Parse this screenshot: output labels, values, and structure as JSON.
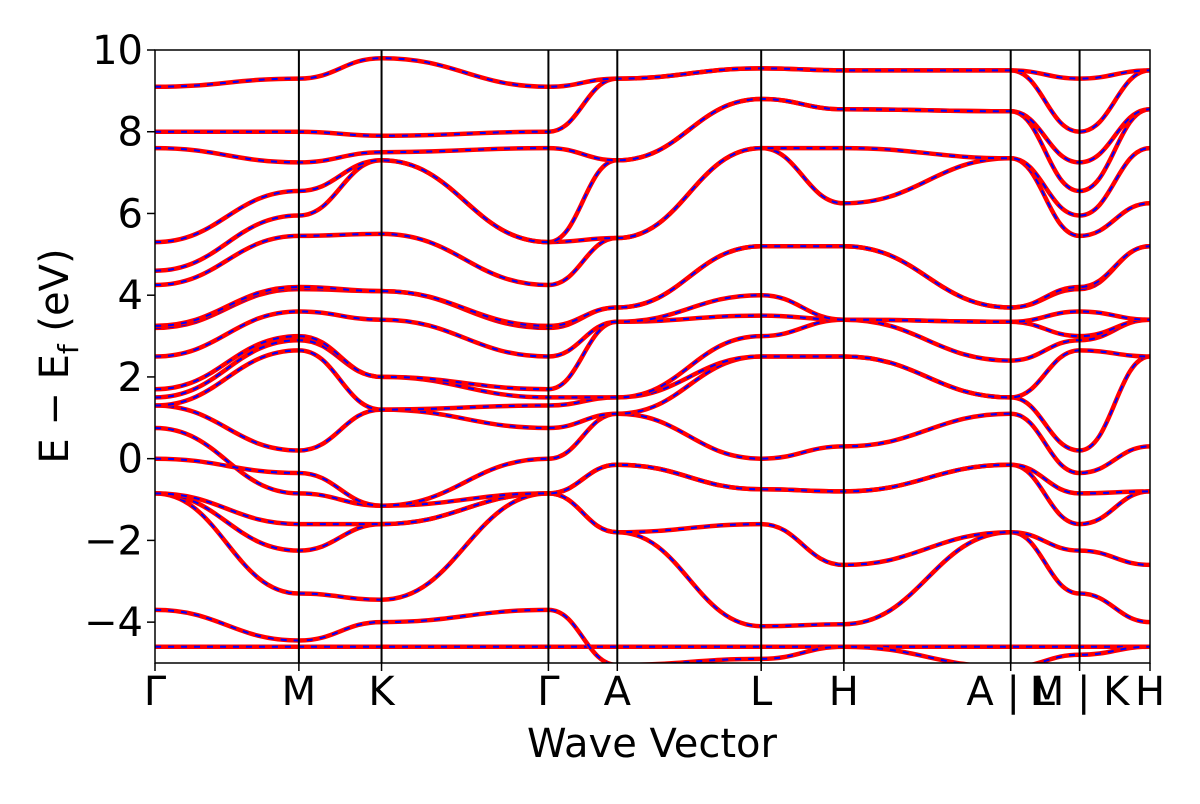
{
  "chart_data": {
    "type": "line",
    "xlabel": "Wave Vector",
    "ylabel_main": "E − E",
    "ylabel_sub": "f",
    "ylabel_unit": " (eV)",
    "ylim": [
      -5,
      10
    ],
    "yticks": [
      -4,
      -2,
      0,
      2,
      4,
      6,
      8,
      10
    ],
    "yticks_labels": [
      "−4",
      "−2",
      "0",
      "2",
      "4",
      "6",
      "8",
      "10"
    ],
    "xlim": [
      0,
      6.5
    ],
    "kpath": {
      "segments": [
        {
          "from": "Γ",
          "to": "M",
          "start": 0.0,
          "end": 0.94
        },
        {
          "from": "M",
          "to": "K",
          "start": 0.94,
          "end": 1.48
        },
        {
          "from": "K",
          "to": "Γ",
          "start": 1.48,
          "end": 2.57
        },
        {
          "from": "Γ",
          "to": "A",
          "start": 2.57,
          "end": 3.02
        },
        {
          "from": "A",
          "to": "L",
          "start": 3.02,
          "end": 3.96
        },
        {
          "from": "L",
          "to": "H",
          "start": 3.96,
          "end": 4.5
        },
        {
          "from": "H",
          "to": "A",
          "start": 4.5,
          "end": 5.59
        },
        {
          "from": "L",
          "to": "M",
          "start": 5.59,
          "end": 6.04
        },
        {
          "from": "K",
          "to": "H",
          "start": 6.04,
          "end": 6.5
        }
      ],
      "tick_positions": [
        0.0,
        0.94,
        1.48,
        2.57,
        3.02,
        3.96,
        4.5,
        5.59,
        6.04,
        6.5
      ],
      "tick_labels": [
        "Γ",
        "M",
        "K",
        "Γ",
        "A",
        "L",
        "H",
        "A | L",
        "M | K",
        "H"
      ]
    },
    "series": [
      {
        "color": "#ff0000",
        "style": "solid"
      },
      {
        "color": "#0000ff",
        "style": "dashed"
      }
    ],
    "bands": [
      [
        -4.6,
        -4.6,
        -4.6,
        -4.6,
        -4.6,
        -4.6,
        -4.6,
        -4.6,
        -4.6,
        -4.6
      ],
      [
        -3.7,
        -4.45,
        -4.0,
        -3.7,
        -5.05,
        -4.9,
        -4.6,
        -5.1,
        -4.8,
        -4.6
      ],
      [
        -0.85,
        -3.3,
        -3.45,
        -0.85,
        -1.8,
        -4.1,
        -4.05,
        -1.8,
        -3.3,
        -4.0
      ],
      [
        -0.85,
        -2.25,
        -1.6,
        -0.85,
        -1.8,
        -1.6,
        -2.6,
        -1.8,
        -2.25,
        -2.6
      ],
      [
        -0.85,
        -1.6,
        -1.6,
        -0.85,
        -0.15,
        -0.75,
        -0.8,
        -0.15,
        -1.6,
        -0.8
      ],
      [
        0.75,
        -0.85,
        -1.15,
        -0.85,
        -0.15,
        -0.75,
        -0.8,
        -0.15,
        -0.85,
        -0.8
      ],
      [
        0.0,
        -0.35,
        -1.15,
        0.0,
        1.1,
        0.0,
        0.3,
        1.1,
        -0.35,
        0.3
      ],
      [
        1.3,
        0.2,
        1.2,
        0.75,
        1.1,
        2.5,
        2.5,
        1.5,
        0.2,
        2.5
      ],
      [
        1.3,
        2.65,
        1.2,
        1.3,
        1.5,
        2.5,
        2.5,
        1.5,
        2.65,
        2.5
      ],
      [
        1.5,
        2.9,
        2.0,
        1.5,
        1.5,
        3.0,
        3.4,
        2.4,
        2.9,
        3.4
      ],
      [
        1.7,
        3.0,
        2.0,
        1.7,
        3.35,
        3.5,
        3.4,
        3.35,
        3.0,
        3.4
      ],
      [
        2.5,
        3.6,
        3.4,
        2.5,
        3.35,
        4.0,
        3.4,
        3.35,
        3.6,
        3.4
      ],
      [
        3.2,
        4.15,
        4.1,
        3.2,
        3.7,
        5.2,
        5.2,
        3.7,
        4.15,
        5.2
      ],
      [
        3.25,
        4.2,
        4.1,
        3.25,
        3.7,
        5.2,
        5.2,
        3.7,
        4.2,
        5.2
      ],
      [
        4.25,
        5.45,
        5.5,
        4.25,
        5.4,
        7.6,
        6.25,
        7.35,
        5.45,
        6.25
      ],
      [
        4.6,
        5.95,
        7.3,
        5.3,
        5.4,
        7.6,
        7.6,
        7.35,
        5.95,
        7.6
      ],
      [
        5.3,
        6.55,
        7.3,
        5.3,
        7.3,
        8.8,
        8.55,
        8.5,
        6.55,
        8.55
      ],
      [
        7.6,
        7.25,
        7.5,
        7.6,
        7.3,
        8.8,
        8.55,
        8.5,
        7.25,
        8.55
      ],
      [
        8.0,
        8.0,
        7.9,
        8.0,
        9.3,
        9.55,
        9.5,
        9.5,
        8.0,
        9.5
      ],
      [
        9.1,
        9.3,
        9.8,
        9.1,
        9.3,
        9.55,
        9.5,
        9.5,
        9.3,
        9.5
      ]
    ]
  }
}
